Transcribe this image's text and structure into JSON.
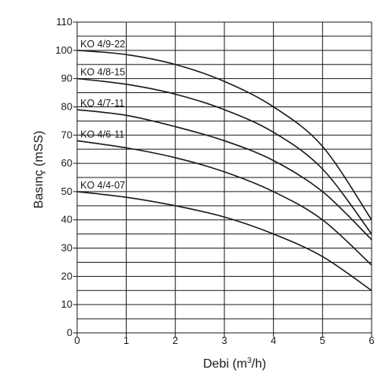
{
  "chart_data": {
    "type": "line",
    "xlabel": "Debi (m",
    "xlabel_sup": "3",
    "xlabel_end": "/h)",
    "ylabel": "Basınç (mSS)",
    "xlim": [
      0,
      6
    ],
    "ylim": [
      0,
      110
    ],
    "x_ticks": [
      0,
      1,
      2,
      3,
      4,
      5,
      6
    ],
    "y_ticks": [
      0,
      10,
      20,
      30,
      40,
      50,
      60,
      70,
      80,
      90,
      100,
      110
    ],
    "y_minor_step": 5,
    "grid": true,
    "series": [
      {
        "name": "KO 4/9-22",
        "x": [
          0,
          1,
          2,
          3,
          4,
          5,
          6
        ],
        "y": [
          100,
          98.5,
          95,
          89,
          80,
          66,
          40
        ]
      },
      {
        "name": "KO 4/8-15",
        "x": [
          0,
          1,
          2,
          3,
          4,
          5,
          6
        ],
        "y": [
          90,
          88,
          84.5,
          79,
          71,
          58,
          35
        ]
      },
      {
        "name": "KO 4/7-11",
        "x": [
          0,
          1,
          2,
          3,
          4,
          5,
          6
        ],
        "y": [
          79,
          77,
          73,
          68,
          61,
          50,
          33
        ]
      },
      {
        "name": "KO 4/6-11",
        "x": [
          0,
          1,
          2,
          3,
          4,
          5,
          6
        ],
        "y": [
          68,
          65.5,
          62,
          57,
          50,
          40,
          24
        ]
      },
      {
        "name": "KO 4/4-07",
        "x": [
          0,
          1,
          2,
          3,
          4,
          5,
          6
        ],
        "y": [
          50,
          48,
          45,
          41,
          35,
          27,
          15
        ]
      }
    ]
  }
}
